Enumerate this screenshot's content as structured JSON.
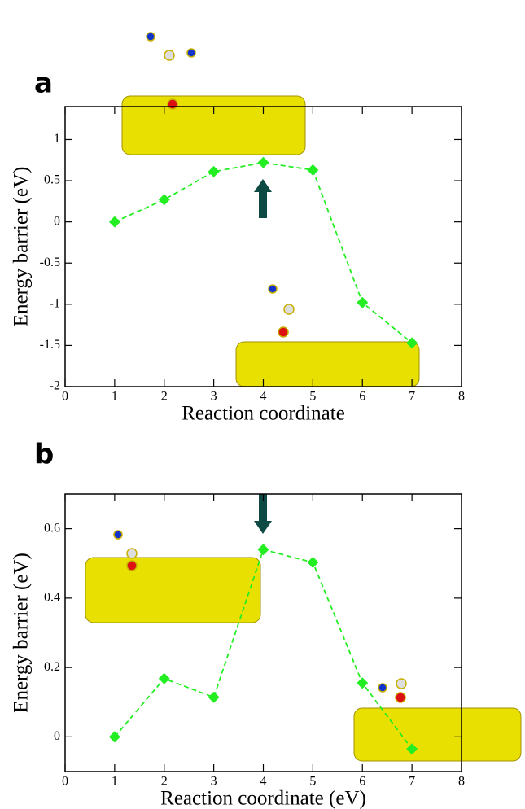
{
  "chart_data": [
    {
      "type": "line",
      "panel_label": "a",
      "xlabel": "Reaction coordinate",
      "ylabel": "Energy barrier (eV)",
      "x": [
        1,
        2,
        3,
        4,
        5,
        6,
        7
      ],
      "series": [
        {
          "color": "#22ee22",
          "values": [
            0,
            0.27,
            0.61,
            0.72,
            0.63,
            -0.98,
            -1.47
          ]
        }
      ],
      "xlim": [
        0,
        8
      ],
      "ylim": [
        -2,
        1.4
      ],
      "xticks": [
        0,
        1,
        2,
        3,
        4,
        5,
        6,
        7,
        8
      ],
      "yticks": [
        -2,
        -1.5,
        -1,
        -0.5,
        0,
        0.5,
        1
      ]
    },
    {
      "type": "line",
      "panel_label": "b",
      "xlabel": "Reaction coordinate (eV)",
      "ylabel": "Energy barrier (eV)",
      "x": [
        1,
        2,
        3,
        4,
        5,
        6,
        7
      ],
      "series": [
        {
          "color": "#22ee22",
          "values": [
            0,
            0.168,
            0.114,
            0.54,
            0.503,
            0.155,
            -0.035
          ]
        }
      ],
      "xlim": [
        0,
        8
      ],
      "ylim": [
        -0.1,
        0.7
      ],
      "xticks": [
        0,
        1,
        2,
        3,
        4,
        5,
        6,
        7,
        8
      ],
      "yticks": [
        0,
        0.2,
        0.4,
        0.6
      ]
    }
  ]
}
